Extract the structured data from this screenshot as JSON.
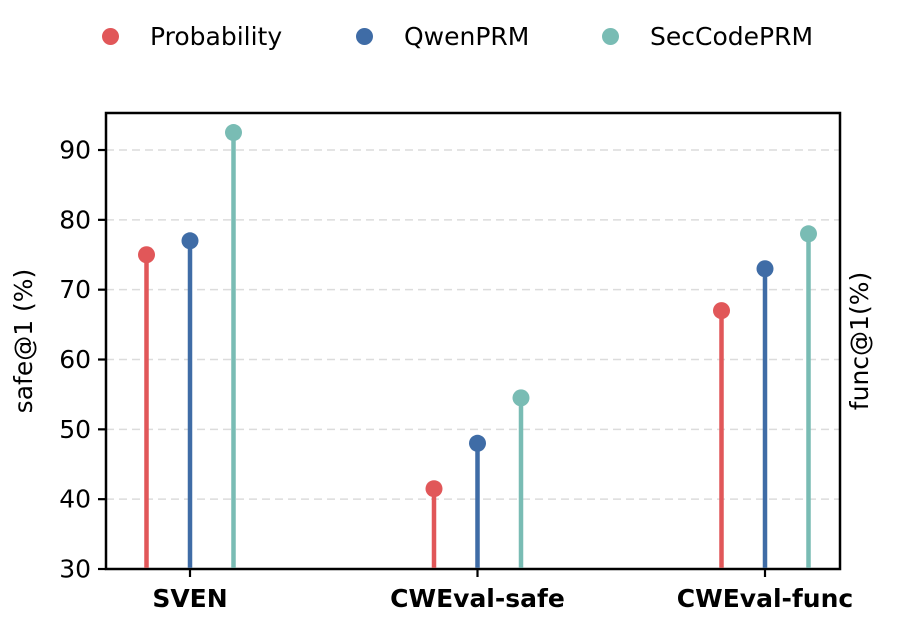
{
  "legend": {
    "items": [
      {
        "label": "Probability",
        "color": "#E15759"
      },
      {
        "label": "QwenPRM",
        "color": "#3F6CA6"
      },
      {
        "label": "SecCodePRM",
        "color": "#79BCB4"
      }
    ]
  },
  "chart_data": {
    "type": "stem",
    "title": "",
    "categories": [
      "SVEN",
      "CWEval-safe",
      "CWEval-func"
    ],
    "series": [
      {
        "name": "Probability",
        "color": "#E15759",
        "values": [
          75.0,
          41.5,
          67.0
        ]
      },
      {
        "name": "QwenPRM",
        "color": "#3F6CA6",
        "values": [
          77.0,
          48.0,
          73.0
        ]
      },
      {
        "name": "SecCodePRM",
        "color": "#79BCB4",
        "values": [
          92.5,
          54.5,
          78.0
        ]
      }
    ],
    "ylabel_left": "safe@1 (%)",
    "ylabel_right": "func@1(%)",
    "ylim": [
      30,
      95.3
    ],
    "yticks": [
      30,
      40,
      50,
      60,
      70,
      80,
      90
    ],
    "baseline": 30,
    "grid": "horizontal-dashed",
    "grid_color": "#DCDCDC",
    "axis_color": "#000000",
    "legend_position": "top"
  }
}
